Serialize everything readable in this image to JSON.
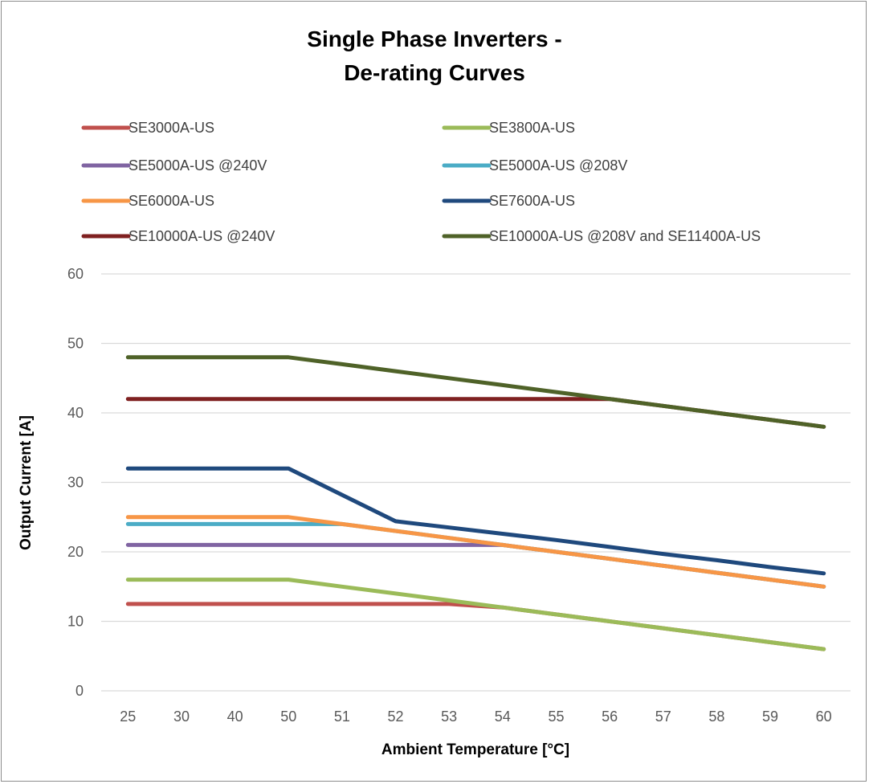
{
  "chart_data": {
    "type": "line",
    "title_lines": [
      "Single Phase Inverters -",
      "De-rating Curves"
    ],
    "xlabel": "Ambient Temperature [°C]",
    "ylabel": "Output Current [A]",
    "categories": [
      "25",
      "30",
      "40",
      "50",
      "51",
      "52",
      "53",
      "54",
      "55",
      "56",
      "57",
      "58",
      "59",
      "60"
    ],
    "ylim": [
      0,
      60
    ],
    "yticks": [
      0,
      10,
      20,
      30,
      40,
      50,
      60
    ],
    "grid": "horizontal",
    "legend_position": "top",
    "series": [
      {
        "name": "SE3000A-US",
        "color": "#c0504d",
        "values": [
          12.5,
          12.5,
          12.5,
          12.5,
          12.5,
          12.5,
          12.5,
          12,
          11,
          10,
          9,
          8,
          7,
          6
        ]
      },
      {
        "name": "SE3800A-US",
        "color": "#9bbb59",
        "values": [
          16,
          16,
          16,
          16,
          15,
          14,
          13,
          12,
          11,
          10,
          9,
          8,
          7,
          6
        ]
      },
      {
        "name": "SE5000A-US @240V",
        "color": "#8064a2",
        "values": [
          21,
          21,
          21,
          21,
          21,
          21,
          21,
          21,
          20,
          19,
          18,
          17,
          16,
          15
        ]
      },
      {
        "name": "SE5000A-US @208V",
        "color": "#4bacc6",
        "values": [
          24,
          24,
          24,
          24,
          24,
          23,
          22,
          21,
          20,
          19,
          18,
          17,
          16,
          15
        ]
      },
      {
        "name": "SE6000A-US",
        "color": "#f79646",
        "values": [
          25,
          25,
          25,
          25,
          24,
          23,
          22,
          21,
          20,
          19,
          18,
          17,
          16,
          15
        ]
      },
      {
        "name": "SE7600A-US",
        "color": "#1f497d",
        "values": [
          32,
          32,
          32,
          32,
          28.2,
          24.4,
          23.5,
          22.6,
          21.7,
          20.7,
          19.7,
          18.8,
          17.8,
          16.9
        ]
      },
      {
        "name": "SE10000A-US @240V",
        "color": "#7f2020",
        "values": [
          42,
          42,
          42,
          42,
          42,
          42,
          42,
          42,
          42,
          42,
          41,
          40,
          39,
          38
        ]
      },
      {
        "name": "SE10000A-US @208V and SE11400A-US",
        "color": "#4f6228",
        "values": [
          48,
          48,
          48,
          48,
          47,
          46,
          45,
          44,
          43,
          42,
          41,
          40,
          39,
          38
        ]
      }
    ]
  }
}
